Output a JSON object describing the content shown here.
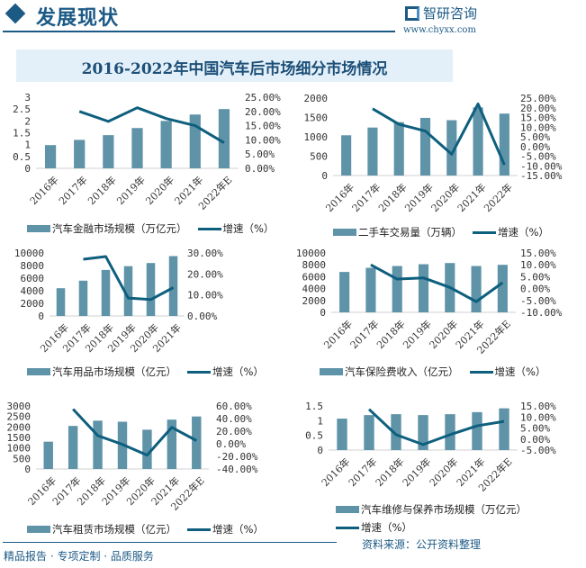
{
  "header": {
    "title": "发展现状",
    "logo_text": "智研咨询",
    "url": "www.chyxx.com"
  },
  "main_title": "2016-2022年中国汽车后市场细分市场情况",
  "colors": {
    "bar": "#5f93a8",
    "line": "#0e5f7e",
    "accent": "#1c5a86"
  },
  "chart_data": [
    {
      "type": "bar+line",
      "categories": [
        "2016年",
        "2017年",
        "2018年",
        "2019年",
        "2020年",
        "2021年",
        "2022年E"
      ],
      "bar_series": {
        "name": "汽车金融市场规模（万亿元）",
        "values": [
          0.98,
          1.2,
          1.4,
          1.7,
          2.0,
          2.27,
          2.5
        ]
      },
      "line_series": {
        "name": "增速（%）",
        "values": [
          null,
          20.0,
          16.5,
          21.3,
          17.5,
          15.0,
          9.0
        ]
      },
      "left_axis": {
        "ylim": [
          0,
          3
        ],
        "ticks": [
          "0",
          "0.5",
          "1",
          "1.5",
          "2",
          "2.5",
          "3"
        ]
      },
      "right_axis": {
        "ylim": [
          0,
          25
        ],
        "ticks": [
          "0.00%",
          "5.00%",
          "10.00%",
          "15.00%",
          "20.00%",
          "25.00%"
        ]
      }
    },
    {
      "type": "bar+line",
      "categories": [
        "2016年",
        "2017年",
        "2018年",
        "2019年",
        "2020年",
        "2021年",
        "2022年"
      ],
      "bar_series": {
        "name": "二手车交易量（万辆）",
        "values": [
          1040,
          1240,
          1380,
          1490,
          1430,
          1760,
          1600
        ]
      },
      "line_series": {
        "name": "增速（%）",
        "values": [
          null,
          19.5,
          11.5,
          8.0,
          -4.0,
          22.0,
          -9.5
        ]
      },
      "left_axis": {
        "ylim": [
          0,
          2000
        ],
        "ticks": [
          "0",
          "500",
          "1000",
          "1500",
          "2000"
        ]
      },
      "right_axis": {
        "ylim": [
          -15,
          25
        ],
        "ticks": [
          "-15.00%",
          "-10.00%",
          "-5.00%",
          "0.00%",
          "5.00%",
          "10.00%",
          "15.00%",
          "20.00%",
          "25.00%"
        ]
      }
    },
    {
      "type": "bar+line",
      "categories": [
        "2016年",
        "2017年",
        "2018年",
        "2019年",
        "2020年",
        "2021年"
      ],
      "bar_series": {
        "name": "汽车用品市场规模（亿元）",
        "values": [
          4400,
          5600,
          7300,
          7900,
          8400,
          9500
        ]
      },
      "line_series": {
        "name": "增速（%）",
        "values": [
          null,
          27.0,
          28.3,
          8.5,
          7.8,
          13.5
        ]
      },
      "left_axis": {
        "ylim": [
          0,
          10000
        ],
        "ticks": [
          "0",
          "2000",
          "4000",
          "6000",
          "8000",
          "10000"
        ]
      },
      "right_axis": {
        "ylim": [
          0,
          30
        ],
        "ticks": [
          "0.00%",
          "10.00%",
          "20.00%",
          "30.00%"
        ]
      }
    },
    {
      "type": "bar+line",
      "categories": [
        "2016年",
        "2017年",
        "2018年",
        "2019年",
        "2020年",
        "2021年",
        "2022年E"
      ],
      "bar_series": {
        "name": "汽车保险费收入（亿元）",
        "values": [
          6800,
          7500,
          7800,
          8100,
          8300,
          7800,
          8000
        ]
      },
      "line_series": {
        "name": "增速（%）",
        "values": [
          null,
          10.0,
          4.0,
          4.5,
          0.5,
          -5.5,
          2.5
        ]
      },
      "left_axis": {
        "ylim": [
          0,
          10000
        ],
        "ticks": [
          "0",
          "2000",
          "4000",
          "6000",
          "8000",
          "10000"
        ]
      },
      "right_axis": {
        "ylim": [
          -10,
          15
        ],
        "ticks": [
          "-10.00%",
          "-5.00%",
          "0.00%",
          "5.00%",
          "10.00%",
          "15.00%"
        ]
      }
    },
    {
      "type": "bar+line",
      "categories": [
        "2016年",
        "2017年",
        "2018年",
        "2019年",
        "2020年",
        "2021年",
        "2022年E"
      ],
      "bar_series": {
        "name": "汽车租赁市场规模（亿元）",
        "values": [
          1300,
          2050,
          2300,
          2250,
          1870,
          2350,
          2500
        ]
      },
      "line_series": {
        "name": "增速（%）",
        "values": [
          null,
          55.0,
          13.0,
          -1.0,
          -18.0,
          26.0,
          5.0
        ]
      },
      "left_axis": {
        "ylim": [
          0,
          3000
        ],
        "ticks": [
          "0",
          "500",
          "1000",
          "1500",
          "2000",
          "2500",
          "3000"
        ]
      },
      "right_axis": {
        "ylim": [
          -40,
          60
        ],
        "ticks": [
          "-40.00%",
          "-20.00%",
          "0.00%",
          "20.00%",
          "40.00%",
          "60.00%"
        ]
      }
    },
    {
      "type": "bar+line",
      "categories": [
        "2016年",
        "2017年",
        "2018年",
        "2019年",
        "2020年",
        "2021年",
        "2022年E"
      ],
      "bar_series": {
        "name": "汽车维修与保养市场规模（万亿元）",
        "values": [
          1.07,
          1.19,
          1.22,
          1.19,
          1.22,
          1.29,
          1.42
        ]
      },
      "line_series": {
        "name": "增速（%）",
        "values": [
          null,
          13.5,
          2.0,
          -2.5,
          2.0,
          6.0,
          8.0
        ]
      },
      "left_axis": {
        "ylim": [
          0,
          1.5
        ],
        "ticks": [
          "0",
          "0.5",
          "1",
          "1.5"
        ]
      },
      "right_axis": {
        "ylim": [
          -5,
          15
        ],
        "ticks": [
          "-5.00%",
          "0.00%",
          "5.00%",
          "10.00%",
          "15.00%"
        ]
      }
    }
  ],
  "footer": {
    "slogan": "精品报告 · 专项定制 · 品质服务",
    "source": "资料来源：公开资料整理"
  }
}
